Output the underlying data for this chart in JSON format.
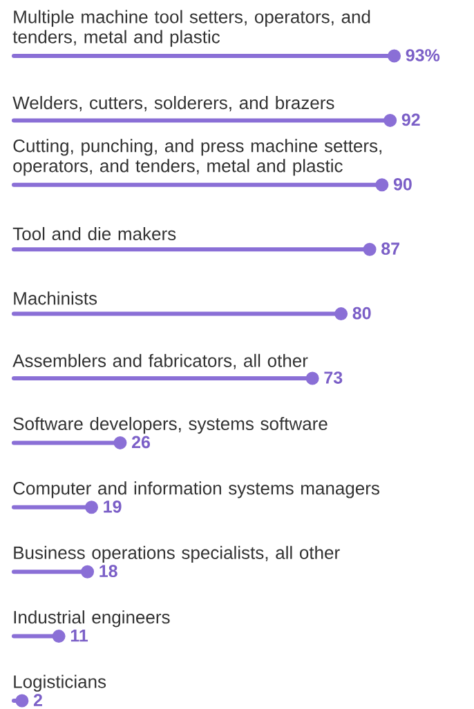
{
  "chart_data": {
    "type": "lollipop",
    "orientation": "horizontal",
    "color": "#8a6fd6",
    "categories": [
      "Multiple machine tool setters, operators, and tenders, metal and plastic",
      "Welders, cutters, solderers, and brazers",
      "Cutting, punching, and press machine setters, operators, and tenders, metal and plastic",
      "Tool and die makers",
      "Machinists",
      "Assemblers and fabricators, all other",
      "Software developers, systems software",
      "Computer and information systems managers",
      "Business operations specialists, all other",
      "Industrial engineers",
      "Logisticians"
    ],
    "values": [
      93,
      92,
      90,
      87,
      80,
      73,
      26,
      19,
      18,
      11,
      2
    ],
    "value_labels": [
      "93%",
      "92",
      "90",
      "87",
      "80",
      "73",
      "26",
      "19",
      "18",
      "11",
      "2"
    ]
  }
}
